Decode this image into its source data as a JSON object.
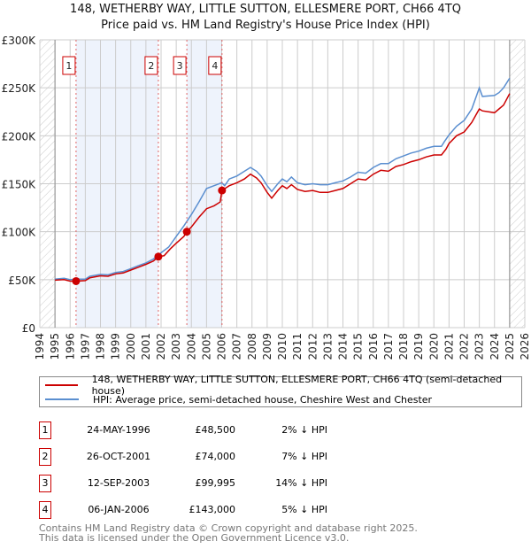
{
  "title_line1": "148, WETHERBY WAY, LITTLE SUTTON, ELLESMERE PORT, CH66 4TQ",
  "title_line2": "Price paid vs. HM Land Registry's House Price Index (HPI)",
  "chart_data": {
    "type": "line",
    "title": "148, WETHERBY WAY, LITTLE SUTTON, ELLESMERE PORT, CH66 4TQ - Price paid vs. HM Land Registry's House Price Index (HPI)",
    "xlim": [
      1994,
      2026
    ],
    "ylim": [
      0,
      300000
    ],
    "x_ticks": [
      "1994",
      "1995",
      "1996",
      "1997",
      "1998",
      "1999",
      "2000",
      "2001",
      "2002",
      "2003",
      "2004",
      "2005",
      "2006",
      "2007",
      "2008",
      "2009",
      "2010",
      "2011",
      "2012",
      "2013",
      "2014",
      "2015",
      "2016",
      "2017",
      "2018",
      "2019",
      "2020",
      "2021",
      "2022",
      "2023",
      "2024",
      "2025",
      "2026"
    ],
    "y_ticks": [
      {
        "v": 0,
        "label": "£0"
      },
      {
        "v": 50000,
        "label": "£50K"
      },
      {
        "v": 100000,
        "label": "£100K"
      },
      {
        "v": 150000,
        "label": "£150K"
      },
      {
        "v": 200000,
        "label": "£200K"
      },
      {
        "v": 250000,
        "label": "£250K"
      },
      {
        "v": 300000,
        "label": "£300K"
      }
    ],
    "grid": true,
    "data_range": [
      1995,
      2025
    ],
    "shaded_periods": [
      [
        1996.39,
        2001.82
      ],
      [
        2003.7,
        2006.02
      ]
    ],
    "series": [
      {
        "name": "148, WETHERBY WAY, LITTLE SUTTON, ELLESMERE PORT, CH66 4TQ (semi-detached house)",
        "color": "#cc0000",
        "points": [
          [
            1995,
            49500
          ],
          [
            1995.6,
            50000
          ],
          [
            1996,
            48500
          ],
          [
            1996.39,
            48500
          ],
          [
            1997,
            49000
          ],
          [
            1997.3,
            52000
          ],
          [
            1998,
            54000
          ],
          [
            1998.5,
            53500
          ],
          [
            1999,
            56000
          ],
          [
            1999.5,
            57000
          ],
          [
            2000,
            60000
          ],
          [
            2000.5,
            63000
          ],
          [
            2001,
            66000
          ],
          [
            2001.5,
            69500
          ],
          [
            2001.82,
            74000
          ],
          [
            2002.2,
            75000
          ],
          [
            2002.6,
            82000
          ],
          [
            2003,
            88000
          ],
          [
            2003.5,
            95000
          ],
          [
            2003.7,
            99995
          ],
          [
            2004,
            105000
          ],
          [
            2004.5,
            115000
          ],
          [
            2005,
            124000
          ],
          [
            2005.5,
            127000
          ],
          [
            2005.9,
            131000
          ],
          [
            2006.02,
            143000
          ],
          [
            2006.5,
            148000
          ],
          [
            2007,
            151000
          ],
          [
            2007.5,
            155000
          ],
          [
            2007.9,
            160000
          ],
          [
            2008.3,
            156000
          ],
          [
            2008.6,
            151000
          ],
          [
            2009,
            141000
          ],
          [
            2009.3,
            135000
          ],
          [
            2009.7,
            143000
          ],
          [
            2010,
            148000
          ],
          [
            2010.3,
            145000
          ],
          [
            2010.6,
            149000
          ],
          [
            2011,
            144000
          ],
          [
            2011.5,
            142000
          ],
          [
            2012,
            143000
          ],
          [
            2012.5,
            141000
          ],
          [
            2013,
            141000
          ],
          [
            2013.5,
            143000
          ],
          [
            2014,
            145000
          ],
          [
            2014.5,
            150000
          ],
          [
            2015,
            155000
          ],
          [
            2015.5,
            154000
          ],
          [
            2016,
            160000
          ],
          [
            2016.5,
            164000
          ],
          [
            2017,
            163000
          ],
          [
            2017.5,
            168000
          ],
          [
            2018,
            170000
          ],
          [
            2018.5,
            173000
          ],
          [
            2019,
            175000
          ],
          [
            2019.5,
            178000
          ],
          [
            2020,
            180000
          ],
          [
            2020.5,
            180000
          ],
          [
            2020.8,
            186000
          ],
          [
            2021,
            192000
          ],
          [
            2021.5,
            200000
          ],
          [
            2022,
            204000
          ],
          [
            2022.5,
            214000
          ],
          [
            2023,
            228000
          ],
          [
            2023.2,
            226000
          ],
          [
            2024,
            224000
          ],
          [
            2024.3,
            228000
          ],
          [
            2024.6,
            232000
          ],
          [
            2025,
            244000
          ]
        ]
      },
      {
        "name": "HPI: Average price, semi-detached house, Cheshire West and Chester",
        "color": "#5b8fd0",
        "points": [
          [
            1995,
            50500
          ],
          [
            1995.6,
            51500
          ],
          [
            1996,
            50000
          ],
          [
            1996.5,
            50500
          ],
          [
            1997,
            50500
          ],
          [
            1997.3,
            53500
          ],
          [
            1998,
            55500
          ],
          [
            1998.5,
            55000
          ],
          [
            1999,
            57500
          ],
          [
            1999.5,
            58500
          ],
          [
            2000,
            61500
          ],
          [
            2000.5,
            64500
          ],
          [
            2001,
            67500
          ],
          [
            2001.5,
            71500
          ],
          [
            2002,
            78000
          ],
          [
            2002.5,
            84000
          ],
          [
            2003,
            95000
          ],
          [
            2003.5,
            106000
          ],
          [
            2004,
            118000
          ],
          [
            2004.5,
            131000
          ],
          [
            2005,
            145000
          ],
          [
            2005.5,
            148000
          ],
          [
            2006,
            151000
          ],
          [
            2006.2,
            148000
          ],
          [
            2006.5,
            155000
          ],
          [
            2007,
            158000
          ],
          [
            2007.5,
            163000
          ],
          [
            2007.9,
            167000
          ],
          [
            2008.3,
            163000
          ],
          [
            2008.6,
            158000
          ],
          [
            2009,
            148000
          ],
          [
            2009.3,
            142000
          ],
          [
            2009.7,
            150000
          ],
          [
            2010,
            155000
          ],
          [
            2010.3,
            152000
          ],
          [
            2010.6,
            157000
          ],
          [
            2011,
            151000
          ],
          [
            2011.5,
            149000
          ],
          [
            2012,
            150000
          ],
          [
            2012.5,
            149000
          ],
          [
            2013,
            149000
          ],
          [
            2013.5,
            151000
          ],
          [
            2014,
            153000
          ],
          [
            2014.5,
            157000
          ],
          [
            2015,
            162000
          ],
          [
            2015.5,
            161000
          ],
          [
            2016,
            167000
          ],
          [
            2016.5,
            171000
          ],
          [
            2017,
            171000
          ],
          [
            2017.5,
            176000
          ],
          [
            2018,
            179000
          ],
          [
            2018.5,
            182000
          ],
          [
            2019,
            184000
          ],
          [
            2019.5,
            187000
          ],
          [
            2020,
            189000
          ],
          [
            2020.5,
            189000
          ],
          [
            2020.7,
            194000
          ],
          [
            2021,
            201000
          ],
          [
            2021.5,
            210000
          ],
          [
            2022,
            216000
          ],
          [
            2022.5,
            228000
          ],
          [
            2023,
            250000
          ],
          [
            2023.2,
            241000
          ],
          [
            2024,
            242000
          ],
          [
            2024.3,
            245000
          ],
          [
            2024.6,
            250000
          ],
          [
            2025,
            260000
          ]
        ]
      }
    ],
    "sales": [
      {
        "label": "1",
        "x": 1996.39,
        "price": 48500
      },
      {
        "label": "2",
        "x": 2001.82,
        "price": 74000
      },
      {
        "label": "3",
        "x": 2003.7,
        "price": 99995
      },
      {
        "label": "4",
        "x": 2006.02,
        "price": 143000
      }
    ]
  },
  "legend": {
    "property": "148, WETHERBY WAY, LITTLE SUTTON, ELLESMERE PORT, CH66 4TQ (semi-detached house)",
    "hpi": "HPI: Average price, semi-detached house, Cheshire West and Chester"
  },
  "transactions": [
    {
      "num": "1",
      "date": "24-MAY-1996",
      "price": "£48,500",
      "diff": "2% ↓ HPI"
    },
    {
      "num": "2",
      "date": "26-OCT-2001",
      "price": "£74,000",
      "diff": "7% ↓ HPI"
    },
    {
      "num": "3",
      "date": "12-SEP-2003",
      "price": "£99,995",
      "diff": "14% ↓ HPI"
    },
    {
      "num": "4",
      "date": "06-JAN-2006",
      "price": "£143,000",
      "diff": "5% ↓ HPI"
    }
  ],
  "footer": {
    "line1": "Contains HM Land Registry data © Crown copyright and database right 2025.",
    "line2": "This data is licensed under the Open Government Licence v3.0."
  }
}
